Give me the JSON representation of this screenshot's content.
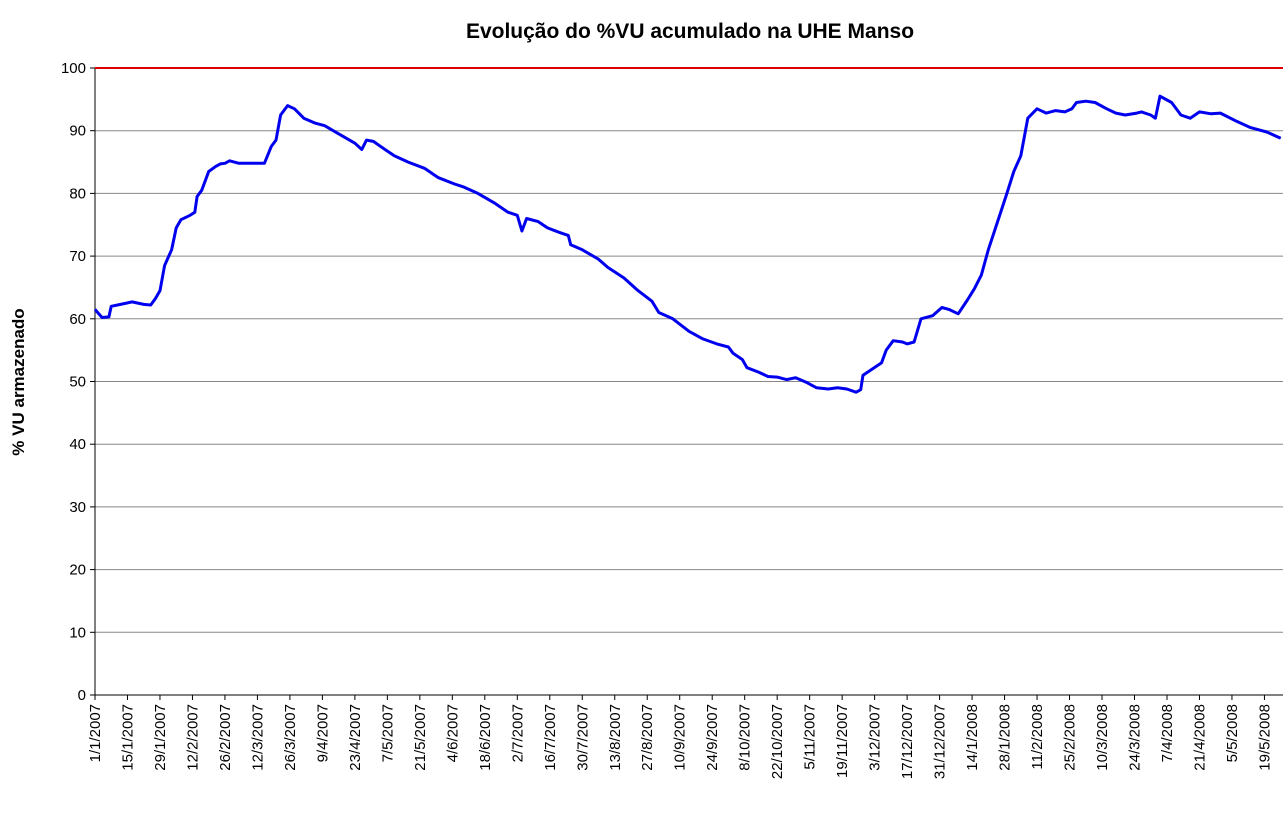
{
  "chart_data": {
    "type": "line",
    "title": "Evolução do %VU acumulado na UHE Manso",
    "y_label": "% VU armazenado",
    "x": [
      "1/1/2007",
      "4/1/2007",
      "7/1/2007",
      "8/1/2007",
      "12/1/2007",
      "17/1/2007",
      "22/1/2007",
      "25/1/2007",
      "27/1/2007",
      "29/1/2007",
      "31/1/2007",
      "3/2/2007",
      "5/2/2007",
      "7/2/2007",
      "11/2/2007",
      "13/2/2007",
      "14/2/2007",
      "16/2/2007",
      "19/2/2007",
      "22/2/2007",
      "24/2/2007",
      "26/2/2007",
      "28/2/2007",
      "4/3/2007",
      "11/3/2007",
      "15/3/2007",
      "18/3/2007",
      "20/3/2007",
      "22/3/2007",
      "25/3/2007",
      "28/3/2007",
      "1/4/2007",
      "6/4/2007",
      "10/4/2007",
      "16/4/2007",
      "23/4/2007",
      "26/4/2007",
      "28/4/2007",
      "1/5/2007",
      "6/5/2007",
      "10/5/2007",
      "16/5/2007",
      "23/5/2007",
      "29/5/2007",
      "5/6/2007",
      "9/6/2007",
      "15/6/2007",
      "22/6/2007",
      "28/6/2007",
      "2/7/2007",
      "4/7/2007",
      "6/7/2007",
      "11/7/2007",
      "15/7/2007",
      "20/7/2007",
      "24/7/2007",
      "25/7/2007",
      "30/7/2007",
      "6/8/2007",
      "10/8/2007",
      "17/8/2007",
      "23/8/2007",
      "29/8/2007",
      "1/9/2007",
      "7/9/2007",
      "14/9/2007",
      "20/9/2007",
      "26/9/2007",
      "1/10/2007",
      "3/10/2007",
      "7/10/2007",
      "9/10/2007",
      "14/10/2007",
      "18/10/2007",
      "22/10/2007",
      "26/10/2007",
      "30/10/2007",
      "4/11/2007",
      "8/11/2007",
      "13/11/2007",
      "17/11/2007",
      "21/11/2007",
      "25/11/2007",
      "27/11/2007",
      "28/11/2007",
      "2/12/2007",
      "6/12/2007",
      "8/12/2007",
      "11/12/2007",
      "15/12/2007",
      "17/12/2007",
      "20/12/2007",
      "23/12/2007",
      "28/12/2007",
      "1/1/2008",
      "4/1/2008",
      "8/1/2008",
      "12/1/2008",
      "15/1/2008",
      "18/1/2008",
      "21/1/2008",
      "25/1/2008",
      "29/1/2008",
      "1/2/2008",
      "4/2/2008",
      "7/2/2008",
      "11/2/2008",
      "15/2/2008",
      "19/2/2008",
      "23/2/2008",
      "26/2/2008",
      "28/2/2008",
      "3/3/2008",
      "7/3/2008",
      "12/3/2008",
      "16/3/2008",
      "20/3/2008",
      "25/3/2008",
      "27/3/2008",
      "31/3/2008",
      "2/4/2008",
      "4/4/2008",
      "9/4/2008",
      "13/4/2008",
      "17/4/2008",
      "21/4/2008",
      "26/4/2008",
      "30/4/2008",
      "7/5/2008",
      "13/5/2008",
      "20/5/2008",
      "26/5/2008"
    ],
    "series": [
      {
        "color": "#0000ee",
        "values": [
          61.5,
          60.2,
          60.3,
          62,
          62.3,
          62.7,
          62.3,
          62.2,
          63.2,
          64.5,
          68.5,
          71,
          74.5,
          75.8,
          76.5,
          77,
          79.5,
          80.5,
          83.5,
          84.3,
          84.7,
          84.8,
          85.2,
          84.8,
          84.8,
          84.8,
          87.5,
          88.5,
          92.5,
          94,
          93.5,
          92,
          91.2,
          90.8,
          89.5,
          88,
          87,
          88.5,
          88.3,
          87,
          86,
          85,
          84,
          82.5,
          81.5,
          81,
          80,
          78.5,
          77,
          76.5,
          74,
          76,
          75.5,
          74.5,
          73.8,
          73.3,
          71.8,
          71,
          69.5,
          68.2,
          66.5,
          64.5,
          62.8,
          61,
          60,
          58,
          56.8,
          56,
          55.5,
          54.5,
          53.5,
          52.2,
          51.5,
          50.8,
          50.7,
          50.3,
          50.6,
          49.8,
          49,
          48.8,
          49,
          48.8,
          48.3,
          48.7,
          51,
          52,
          53,
          55,
          56.5,
          56.3,
          56,
          56.3,
          60,
          60.5,
          61.8,
          61.5,
          60.8,
          63,
          64.8,
          67,
          71,
          75.5,
          80,
          83.5,
          86,
          92,
          93.5,
          92.8,
          93.2,
          93,
          93.5,
          94.5,
          94.7,
          94.5,
          93.5,
          92.8,
          92.5,
          92.8,
          93,
          92.5,
          92,
          95.5,
          94.5,
          92.5,
          92,
          93,
          92.7,
          92.8,
          91.5,
          90.5,
          89.8,
          88.8
        ]
      }
    ],
    "hline": 100,
    "hline_color": "#dd0000",
    "xlim": [
      "1/1/2007",
      "27/5/2008"
    ],
    "xticks": [
      "1/1/2007",
      "15/1/2007",
      "29/1/2007",
      "12/2/2007",
      "26/2/2007",
      "12/3/2007",
      "26/3/2007",
      "9/4/2007",
      "23/4/2007",
      "7/5/2007",
      "21/5/2007",
      "4/6/2007",
      "18/6/2007",
      "2/7/2007",
      "16/7/2007",
      "30/7/2007",
      "13/8/2007",
      "27/8/2007",
      "10/9/2007",
      "24/9/2007",
      "8/10/2007",
      "22/10/2007",
      "5/11/2007",
      "19/11/2007",
      "3/12/2007",
      "17/12/2007",
      "31/12/2007",
      "14/1/2008",
      "28/1/2008",
      "11/2/2008",
      "25/2/2008",
      "10/3/2008",
      "24/3/2008",
      "7/4/2008",
      "21/4/2008",
      "5/5/2008",
      "19/5/2008"
    ],
    "ylim": [
      0,
      100
    ],
    "yticks": [
      0,
      10,
      20,
      30,
      40,
      50,
      60,
      70,
      80,
      90,
      100
    ],
    "grid": true
  }
}
